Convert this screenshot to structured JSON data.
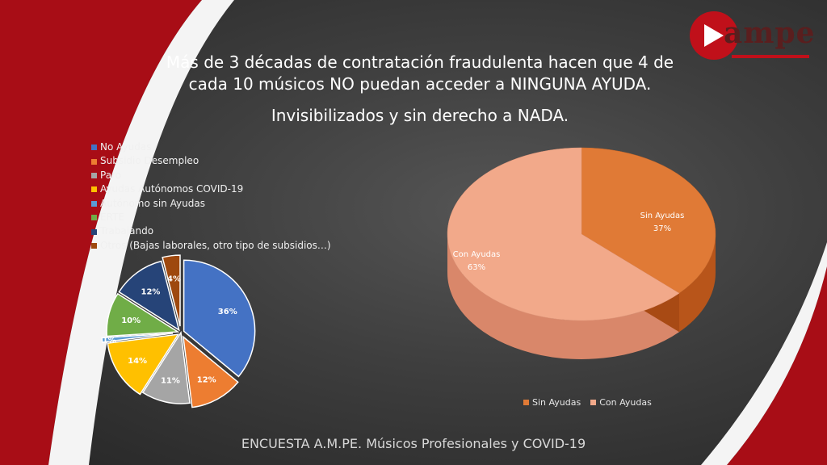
{
  "slide": {
    "title_line1": "Más de 3 décadas de contratación fraudulenta hacen que 4 de",
    "title_line2": "cada 10 músicos NO puedan acceder a NINGUNA AYUDA.",
    "subtitle": "Invisibilizados y sin derecho a NADA.",
    "footer": "ENCUESTA A.M.PE. Músicos Profesionales y COVID-19",
    "logo_text": "ampe",
    "colors": {
      "accent_red": "#b0101a",
      "background": "#3e3e3e"
    }
  },
  "chart_data": [
    {
      "type": "pie",
      "categories": [
        "No Ayudas",
        "Subsidio Desempleo",
        "Paro",
        "Ayudas Autónomos COVID-19",
        "Autónomo sin Ayudas",
        "ERTE",
        "Trabajando",
        "Otros (Bajas laborales, otro tipo de subsidios…)"
      ],
      "values": [
        36,
        12,
        11,
        14,
        1,
        10,
        12,
        4
      ],
      "labels": [
        "36%",
        "12%",
        "11%",
        "14%",
        "1%",
        "10%",
        "12%",
        "4%"
      ],
      "colors": [
        "#4472c4",
        "#ed7d31",
        "#a5a5a5",
        "#ffc000",
        "#5b9bd5",
        "#70ad47",
        "#264478",
        "#9e480e"
      ],
      "legend_position": "top-left"
    },
    {
      "type": "pie",
      "categories": [
        "Sin Ayudas",
        "Con Ayudas"
      ],
      "values": [
        37,
        63
      ],
      "labels": [
        "Sin Ayudas\n37%",
        "Con Ayudas\n63%"
      ],
      "colors": [
        "#e07a36",
        "#f2a98a"
      ],
      "style": "3d",
      "legend_position": "bottom"
    }
  ]
}
